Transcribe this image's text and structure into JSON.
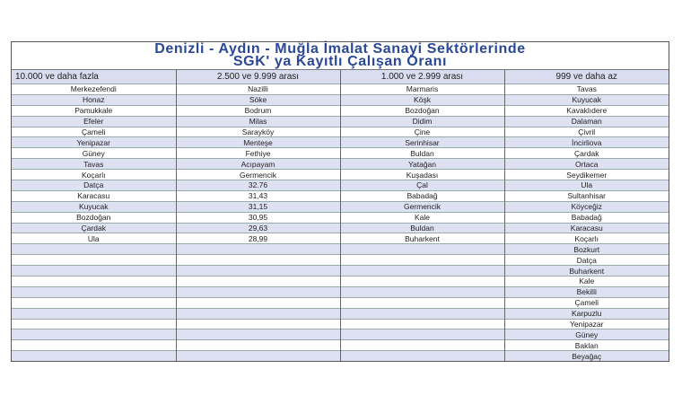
{
  "title_line1": "Denizli - Aydın - Muğla İmalat Sanayi Sektörlerinde",
  "title_line2": "SGK' ya Kayıtlı Çalışan Oranı",
  "columns": [
    "10.000 ve daha fazla",
    "2.500 ve 9.999 arası",
    "1.000 ve 2.999 arası",
    "999 ve daha az"
  ],
  "col1": [
    "Merkezefendi",
    "Honaz",
    "Pamukkale",
    "Efeler",
    "Çameli",
    "Yenipazar",
    "Güney",
    "Tavas",
    "Koçarlı",
    "Datça",
    "Karacasu",
    "Kuyucak",
    "Bozdoğan",
    "Çardak",
    "Ula"
  ],
  "col2": [
    "Nazilli",
    "Söke",
    "Bodrum",
    "Milas",
    "Sarayköy",
    "Menteşe",
    "Fethiye",
    "Acıpayam",
    "Germencik",
    "32.76",
    "31,43",
    "31,15",
    "30,95",
    "29,63",
    "28,99"
  ],
  "col3": [
    "Marmaris",
    "Köşk",
    "Bozdoğan",
    "Didim",
    "Çine",
    "Serinhisar",
    "Buldan",
    "Yatağan",
    "Kuşadası",
    "Çal",
    "Babadağ",
    "Germencik",
    "Kale",
    "Buldan",
    "Buharkent"
  ],
  "col4": [
    "Tavas",
    "Kuyucak",
    "Kavaklıdere",
    "Dalaman",
    "Çivril",
    "İncirliova",
    "Çardak",
    "Ortaca",
    "Seydikemer",
    "Ula",
    "Sultanhisar",
    "Köyceğiz",
    "Babadağ",
    "Karacasu",
    "Koçarlı",
    "Bozkurt",
    "Datça",
    "Buharkent",
    "Kale",
    "Bekilli",
    "Çameli",
    "Karpuzlu",
    "Yenipazar",
    "Güney",
    "Baklan",
    "Beyağaç"
  ],
  "colors": {
    "title": "#2a4897",
    "row_alt": "#dde1f2"
  }
}
